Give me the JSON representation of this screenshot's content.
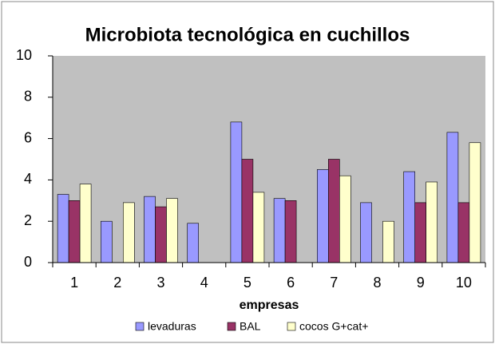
{
  "chart_data": {
    "type": "bar",
    "title": "Microbiota tecnológica en cuchillos",
    "x_label": "empresas",
    "categories": [
      "1",
      "2",
      "3",
      "4",
      "5",
      "6",
      "7",
      "8",
      "9",
      "10"
    ],
    "series": [
      {
        "name": "levaduras",
        "color": "#9999ff",
        "values": [
          3.3,
          2.0,
          3.2,
          1.9,
          6.8,
          3.1,
          4.5,
          2.9,
          4.4,
          6.3
        ]
      },
      {
        "name": "BAL",
        "color": "#993366",
        "values": [
          3.0,
          0,
          2.7,
          0,
          5.0,
          3.0,
          5.0,
          0,
          2.9,
          2.9
        ]
      },
      {
        "name": "cocos G+cat+",
        "color": "#ffffcc",
        "values": [
          3.8,
          2.9,
          3.1,
          0,
          3.4,
          0,
          4.2,
          2.0,
          3.9,
          5.8
        ]
      }
    ],
    "ylim": [
      0,
      10
    ],
    "yticks": [
      0,
      2,
      4,
      6,
      8,
      10
    ],
    "grid": false,
    "legend": "bottom"
  }
}
